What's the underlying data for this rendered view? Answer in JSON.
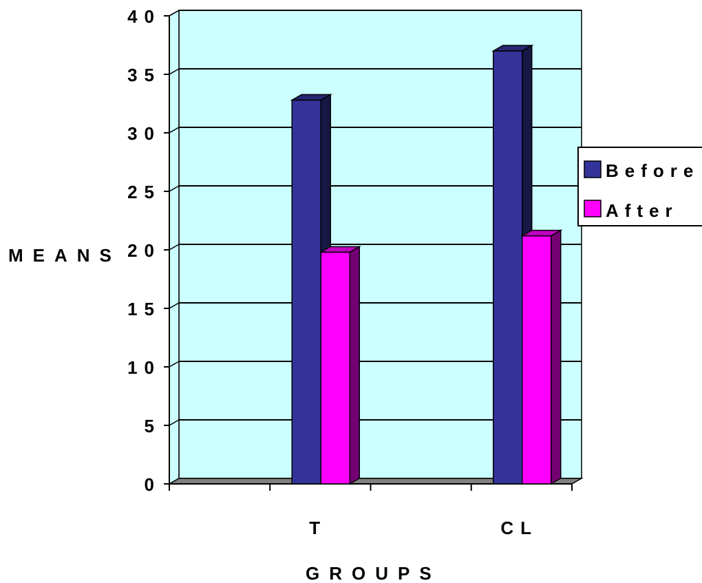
{
  "chart_data": {
    "type": "bar",
    "style": "3d-clustered-column",
    "categories": [
      "T",
      "CL"
    ],
    "series": [
      {
        "name": "Before",
        "values": [
          32.8,
          37
        ]
      },
      {
        "name": "After",
        "values": [
          19.8,
          21.2
        ]
      }
    ],
    "xlabel": "GROUPS",
    "ylabel": "MEANS",
    "ylim": [
      0,
      40
    ],
    "yticks": [
      "0",
      "5",
      "10",
      "15",
      "20",
      "25",
      "30",
      "35",
      "40"
    ],
    "grid": true,
    "legend_position": "right",
    "colors": {
      "plot_background": "#ccffff",
      "floor": "#808080",
      "series": [
        "#333399",
        "#ff00ff"
      ]
    }
  }
}
